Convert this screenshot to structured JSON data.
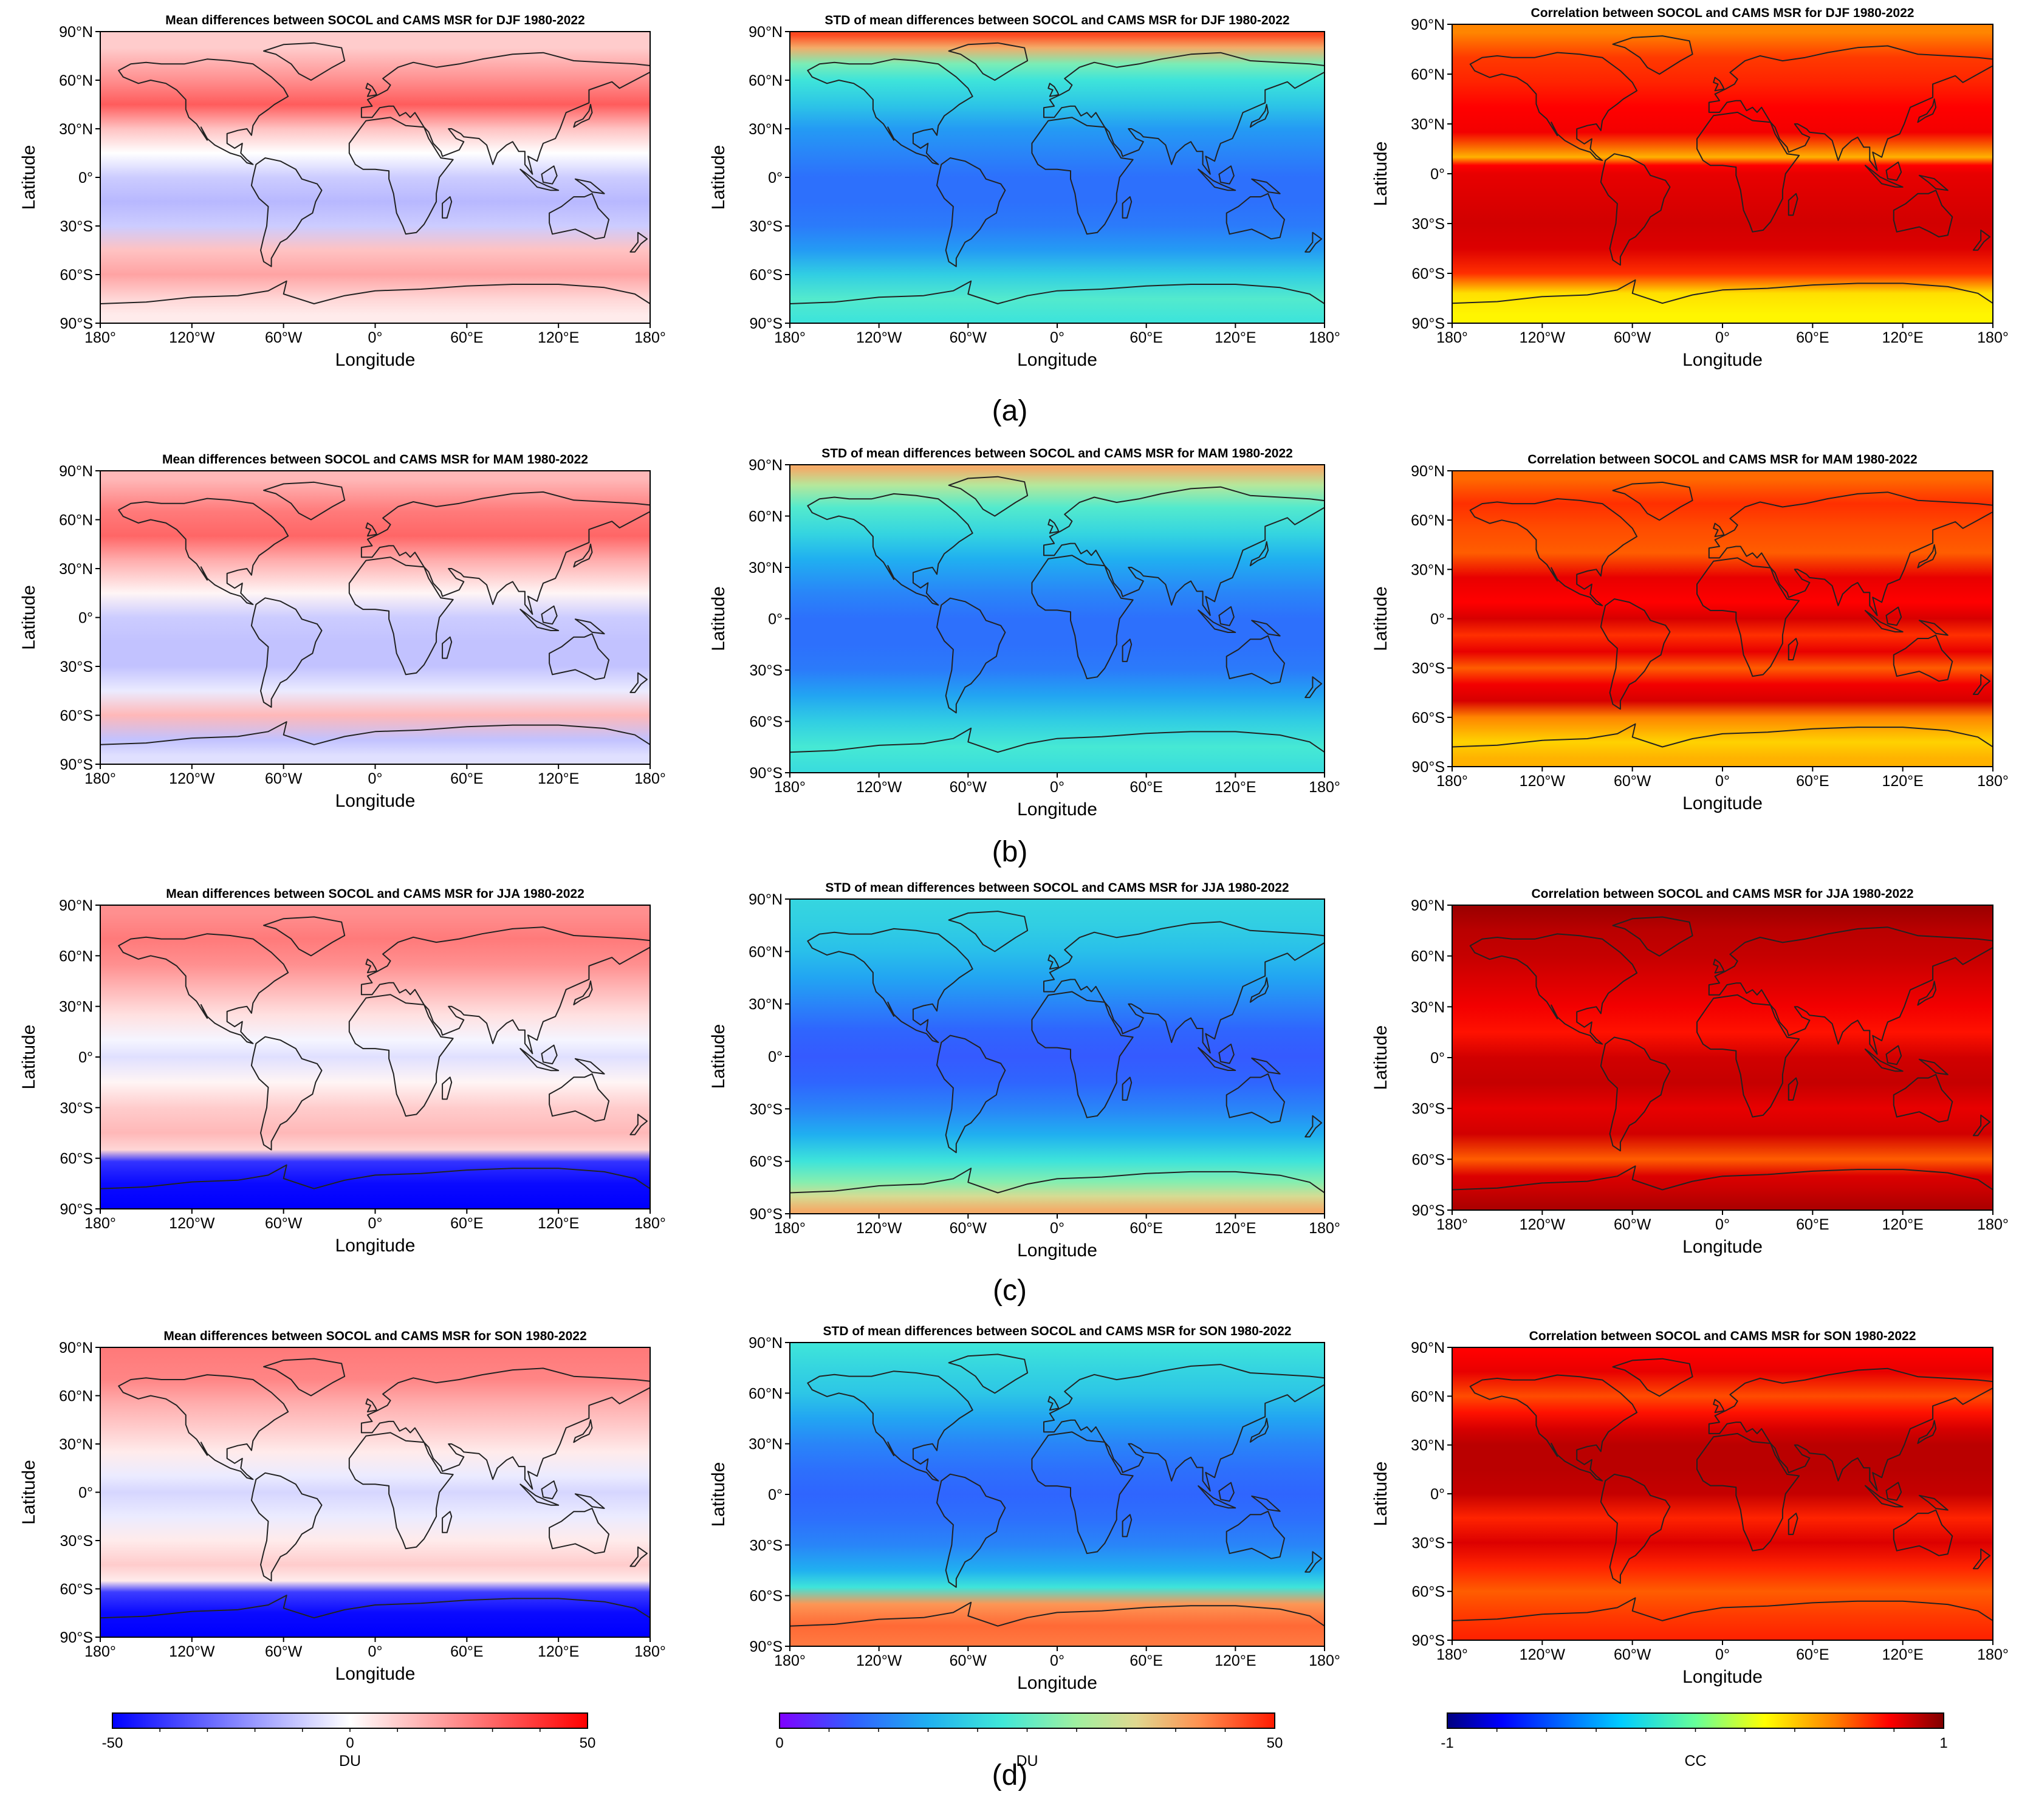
{
  "figure": {
    "row_labels": [
      "(a)",
      "(b)",
      "(c)",
      "(d)"
    ]
  },
  "chart_data": [
    {
      "type": "heatmap",
      "row": 0,
      "col": 0,
      "season": "DJF",
      "title": "Mean differences between SOCOL and CAMS MSR for DJF 1980-2022",
      "xlabel": "Longitude",
      "ylabel": "Latitude",
      "xlim": [
        -180,
        180
      ],
      "ylim": [
        -90,
        90
      ],
      "xticks": [
        "180°",
        "120°W",
        "60°W",
        "0°",
        "60°E",
        "120°E",
        "180°"
      ],
      "yticks": [
        "90°N",
        "60°N",
        "30°N",
        "0°",
        "30°S",
        "60°S",
        "90°S"
      ],
      "colormap": "bwr",
      "vmin": -50,
      "vmax": 50,
      "zonal_lat": [
        80,
        60,
        45,
        30,
        15,
        0,
        -15,
        -30,
        -45,
        -60,
        -75,
        -85
      ],
      "zonal_values": [
        10,
        22,
        32,
        12,
        0,
        -10,
        -14,
        -10,
        12,
        18,
        8,
        4
      ]
    },
    {
      "type": "heatmap",
      "row": 0,
      "col": 1,
      "season": "DJF",
      "title": "STD of mean differences between SOCOL and CAMS MSR for DJF 1980-2022",
      "xlabel": "Longitude",
      "ylabel": "Latitude",
      "xlim": [
        -180,
        180
      ],
      "ylim": [
        -90,
        90
      ],
      "xticks": [
        "180°",
        "120°W",
        "60°W",
        "0°",
        "60°E",
        "120°E",
        "180°"
      ],
      "yticks": [
        "90°N",
        "60°N",
        "30°N",
        "0°",
        "30°S",
        "60°S",
        "90°S"
      ],
      "colormap": "rainbow",
      "vmin": 0,
      "vmax": 50,
      "zonal_lat": [
        88,
        80,
        70,
        60,
        45,
        30,
        15,
        0,
        -15,
        -30,
        -45,
        -60,
        -75,
        -88
      ],
      "zonal_values": [
        47,
        40,
        27,
        22,
        18,
        13,
        11,
        9,
        9,
        10,
        13,
        19,
        24,
        22
      ]
    },
    {
      "type": "heatmap",
      "row": 0,
      "col": 2,
      "season": "DJF",
      "title": "Correlation between SOCOL and CAMS MSR for DJF 1980-2022",
      "xlabel": "Longitude",
      "ylabel": "Latitude",
      "xlim": [
        -180,
        180
      ],
      "ylim": [
        -90,
        90
      ],
      "xticks": [
        "180°",
        "120°W",
        "60°W",
        "0°",
        "60°E",
        "120°E",
        "180°"
      ],
      "yticks": [
        "90°N",
        "60°N",
        "30°N",
        "0°",
        "30°S",
        "60°S",
        "90°S"
      ],
      "colormap": "jet",
      "vmin": -1,
      "vmax": 1,
      "zonal_lat": [
        85,
        70,
        55,
        40,
        25,
        10,
        5,
        0,
        -15,
        -30,
        -45,
        -60,
        -72,
        -85
      ],
      "zonal_values": [
        0.55,
        0.68,
        0.72,
        0.78,
        0.8,
        0.45,
        0.78,
        0.82,
        0.84,
        0.86,
        0.84,
        0.7,
        0.35,
        0.3
      ]
    },
    {
      "type": "heatmap",
      "row": 1,
      "col": 0,
      "season": "MAM",
      "title": "Mean differences between SOCOL and CAMS MSR for MAM 1980-2022",
      "xlabel": "Longitude",
      "ylabel": "Latitude",
      "xlim": [
        -180,
        180
      ],
      "ylim": [
        -90,
        90
      ],
      "xticks": [
        "180°",
        "120°W",
        "60°W",
        "0°",
        "60°E",
        "120°E",
        "180°"
      ],
      "yticks": [
        "90°N",
        "60°N",
        "30°N",
        "0°",
        "30°S",
        "60°S",
        "90°S"
      ],
      "colormap": "bwr",
      "vmin": -50,
      "vmax": 50,
      "zonal_lat": [
        85,
        65,
        50,
        35,
        15,
        0,
        -15,
        -30,
        -45,
        -60,
        -75,
        -85
      ],
      "zonal_values": [
        14,
        26,
        30,
        16,
        2,
        -10,
        -12,
        -12,
        -4,
        14,
        -12,
        -6
      ]
    },
    {
      "type": "heatmap",
      "row": 1,
      "col": 1,
      "season": "MAM",
      "title": "STD of mean differences between SOCOL and CAMS MSR for MAM 1980-2022",
      "xlabel": "Longitude",
      "ylabel": "Latitude",
      "xlim": [
        -180,
        180
      ],
      "ylim": [
        -90,
        90
      ],
      "xticks": [
        "180°",
        "120°W",
        "60°W",
        "0°",
        "60°E",
        "120°E",
        "180°"
      ],
      "yticks": [
        "90°N",
        "60°N",
        "30°N",
        "0°",
        "30°S",
        "60°S",
        "90°S"
      ],
      "colormap": "rainbow",
      "vmin": 0,
      "vmax": 50,
      "zonal_lat": [
        88,
        78,
        65,
        50,
        35,
        15,
        0,
        -15,
        -30,
        -45,
        -60,
        -75,
        -88
      ],
      "zonal_values": [
        40,
        32,
        24,
        20,
        15,
        11,
        9,
        9,
        10,
        14,
        19,
        23,
        21
      ]
    },
    {
      "type": "heatmap",
      "row": 1,
      "col": 2,
      "season": "MAM",
      "title": "Correlation between SOCOL and CAMS MSR for MAM 1980-2022",
      "xlabel": "Longitude",
      "ylabel": "Latitude",
      "xlim": [
        -180,
        180
      ],
      "ylim": [
        -90,
        90
      ],
      "xticks": [
        "180°",
        "120°W",
        "60°W",
        "0°",
        "60°E",
        "120°E",
        "180°"
      ],
      "yticks": [
        "90°N",
        "60°N",
        "30°N",
        "0°",
        "30°S",
        "60°S",
        "90°S"
      ],
      "colormap": "jet",
      "vmin": -1,
      "vmax": 1,
      "zonal_lat": [
        85,
        70,
        55,
        40,
        25,
        10,
        0,
        -10,
        -20,
        -30,
        -40,
        -50,
        -60,
        -75,
        -85
      ],
      "zonal_values": [
        0.6,
        0.7,
        0.65,
        0.62,
        0.82,
        0.78,
        0.85,
        0.7,
        0.82,
        0.62,
        0.8,
        0.85,
        0.55,
        0.38,
        0.45
      ]
    },
    {
      "type": "heatmap",
      "row": 2,
      "col": 0,
      "season": "JJA",
      "title": "Mean differences between SOCOL and CAMS MSR for JJA 1980-2022",
      "xlabel": "Longitude",
      "ylabel": "Latitude",
      "xlim": [
        -180,
        180
      ],
      "ylim": [
        -90,
        90
      ],
      "xticks": [
        "180°",
        "120°W",
        "60°W",
        "0°",
        "60°E",
        "120°E",
        "180°"
      ],
      "yticks": [
        "90°N",
        "60°N",
        "30°N",
        "0°",
        "30°S",
        "60°S",
        "90°S"
      ],
      "colormap": "bwr",
      "vmin": -50,
      "vmax": 50,
      "zonal_lat": [
        85,
        70,
        55,
        40,
        25,
        10,
        0,
        -15,
        -30,
        -45,
        -55,
        -62,
        -75,
        -88
      ],
      "zonal_values": [
        22,
        26,
        22,
        14,
        6,
        -2,
        -6,
        2,
        10,
        14,
        8,
        -40,
        -48,
        -50
      ]
    },
    {
      "type": "heatmap",
      "row": 2,
      "col": 1,
      "season": "JJA",
      "title": "STD of mean differences between SOCOL and CAMS MSR for JJA 1980-2022",
      "xlabel": "Longitude",
      "ylabel": "Latitude",
      "xlim": [
        -180,
        180
      ],
      "ylim": [
        -90,
        90
      ],
      "xticks": [
        "180°",
        "120°W",
        "60°W",
        "0°",
        "60°E",
        "120°E",
        "180°"
      ],
      "yticks": [
        "90°N",
        "60°N",
        "30°N",
        "0°",
        "30°S",
        "60°S",
        "90°S"
      ],
      "colormap": "rainbow",
      "vmin": 0,
      "vmax": 50,
      "zonal_lat": [
        88,
        75,
        60,
        45,
        30,
        15,
        0,
        -15,
        -30,
        -45,
        -60,
        -72,
        -80,
        -88
      ],
      "zonal_values": [
        20,
        19,
        17,
        14,
        11,
        8,
        7,
        8,
        11,
        15,
        22,
        28,
        35,
        40
      ]
    },
    {
      "type": "heatmap",
      "row": 2,
      "col": 2,
      "season": "JJA",
      "title": "Correlation between SOCOL and CAMS MSR for JJA 1980-2022",
      "xlabel": "Longitude",
      "ylabel": "Latitude",
      "xlim": [
        -180,
        180
      ],
      "ylim": [
        -90,
        90
      ],
      "xticks": [
        "180°",
        "120°W",
        "60°W",
        "0°",
        "60°E",
        "120°E",
        "180°"
      ],
      "yticks": [
        "90°N",
        "60°N",
        "30°N",
        "0°",
        "30°S",
        "60°S",
        "90°S"
      ],
      "colormap": "jet",
      "vmin": -1,
      "vmax": 1,
      "zonal_lat": [
        88,
        75,
        60,
        45,
        30,
        15,
        0,
        -15,
        -30,
        -45,
        -60,
        -70,
        -80,
        -88
      ],
      "zonal_values": [
        0.95,
        0.9,
        0.88,
        0.84,
        0.8,
        0.75,
        0.86,
        0.88,
        0.82,
        0.86,
        0.62,
        0.84,
        0.88,
        0.92
      ]
    },
    {
      "type": "heatmap",
      "row": 3,
      "col": 0,
      "season": "SON",
      "title": "Mean differences between SOCOL and CAMS MSR for SON 1980-2022",
      "xlabel": "Longitude",
      "ylabel": "Latitude",
      "xlim": [
        -180,
        180
      ],
      "ylim": [
        -90,
        90
      ],
      "xticks": [
        "180°",
        "120°W",
        "60°W",
        "0°",
        "60°E",
        "120°E",
        "180°"
      ],
      "yticks": [
        "90°N",
        "60°N",
        "30°N",
        "0°",
        "30°S",
        "60°S",
        "90°S"
      ],
      "colormap": "bwr",
      "vmin": -50,
      "vmax": 50,
      "zonal_lat": [
        88,
        70,
        55,
        40,
        25,
        10,
        0,
        -15,
        -30,
        -45,
        -55,
        -62,
        -75,
        -88
      ],
      "zonal_values": [
        26,
        24,
        16,
        10,
        4,
        -4,
        -8,
        -4,
        4,
        10,
        4,
        -38,
        -48,
        -50
      ]
    },
    {
      "type": "heatmap",
      "row": 3,
      "col": 1,
      "season": "SON",
      "title": "STD of mean differences between SOCOL and CAMS MSR for SON 1980-2022",
      "xlabel": "Longitude",
      "ylabel": "Latitude",
      "xlim": [
        -180,
        180
      ],
      "ylim": [
        -90,
        90
      ],
      "xticks": [
        "180°",
        "120°W",
        "60°W",
        "0°",
        "60°E",
        "120°E",
        "180°"
      ],
      "yticks": [
        "90°N",
        "60°N",
        "30°N",
        "0°",
        "30°S",
        "60°S",
        "90°S"
      ],
      "colormap": "rainbow",
      "vmin": 0,
      "vmax": 50,
      "zonal_lat": [
        88,
        75,
        60,
        45,
        30,
        15,
        0,
        -15,
        -30,
        -45,
        -55,
        -65,
        -78,
        -88
      ],
      "zonal_values": [
        22,
        20,
        18,
        14,
        11,
        9,
        8,
        9,
        11,
        15,
        22,
        42,
        45,
        44
      ]
    },
    {
      "type": "heatmap",
      "row": 3,
      "col": 2,
      "season": "SON",
      "title": "Correlation between SOCOL and CAMS MSR for SON 1980-2022",
      "xlabel": "Longitude",
      "ylabel": "Latitude",
      "xlim": [
        -180,
        180
      ],
      "ylim": [
        -90,
        90
      ],
      "xticks": [
        "180°",
        "120°W",
        "60°W",
        "0°",
        "60°E",
        "120°E",
        "180°"
      ],
      "yticks": [
        "90°N",
        "60°N",
        "30°N",
        "0°",
        "30°S",
        "60°S",
        "90°S"
      ],
      "colormap": "jet",
      "vmin": -1,
      "vmax": 1,
      "zonal_lat": [
        88,
        75,
        60,
        50,
        40,
        30,
        15,
        0,
        -15,
        -30,
        -45,
        -60,
        -75,
        -88
      ],
      "zonal_values": [
        0.78,
        0.82,
        0.65,
        0.75,
        0.85,
        0.9,
        0.9,
        0.88,
        0.72,
        0.84,
        0.72,
        0.62,
        0.68,
        0.72
      ]
    }
  ],
  "colorbars": [
    {
      "colormap": "bwr",
      "vmin": -50,
      "vmax": 50,
      "tick_labels": [
        "-50",
        "0",
        "50"
      ],
      "tick_values": [
        -50,
        0,
        50
      ],
      "unit": "DU"
    },
    {
      "colormap": "rainbow",
      "vmin": 0,
      "vmax": 50,
      "tick_labels": [
        "0",
        "50"
      ],
      "tick_values": [
        0,
        50
      ],
      "unit": "DU"
    },
    {
      "colormap": "jet",
      "vmin": -1,
      "vmax": 1,
      "tick_labels": [
        "-1",
        "1"
      ],
      "tick_values": [
        -1,
        1
      ],
      "unit": "CC"
    }
  ]
}
